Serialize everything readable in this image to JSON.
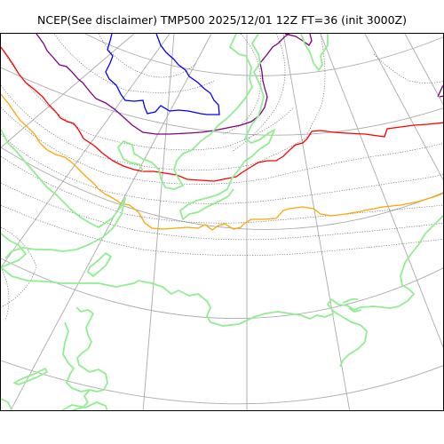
{
  "title": "NCEP(See disclaimer) TMP500 2025/12/01 12Z FT=36 (init 3000Z)",
  "colors": {
    "graticule": "#aaaaaa",
    "coastline": "#90ee90",
    "isotherm": "#555555",
    "contour_blue": "#0000ff",
    "contour_purple": "#800080",
    "contour_red": "#ff0000",
    "contour_orange": "#ffa500"
  },
  "legend_free_map": {
    "type": "weather-map",
    "layers": [
      "graticule",
      "coastline",
      "dotted-isotherms",
      "highlighted-isotherms"
    ]
  }
}
